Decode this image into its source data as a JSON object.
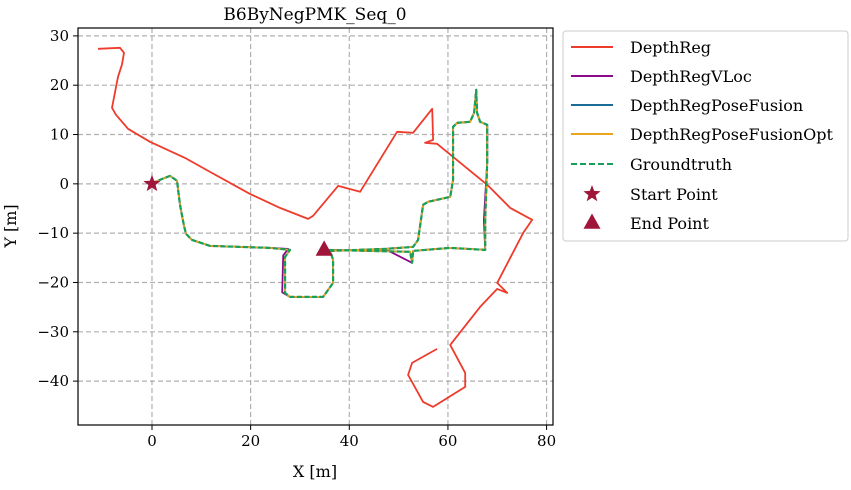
{
  "chart_data": {
    "type": "line",
    "title": "B6ByNegPMK_Seq_0",
    "xlabel": "X [m]",
    "ylabel": "Y [m]",
    "xlim": [
      -15,
      81.3
    ],
    "ylim": [
      -48.9,
      31.6
    ],
    "grid": true,
    "legend_placement": "outside-top-right",
    "xticks": [
      0,
      20,
      40,
      60,
      80
    ],
    "yticks": [
      30,
      20,
      10,
      0,
      -10,
      -20,
      -30,
      -40
    ],
    "xtick_labels": [
      "0",
      "20",
      "40",
      "60",
      "80"
    ],
    "ytick_labels": [
      "30",
      "20",
      "10",
      "0",
      "−10",
      "−20",
      "−30",
      "−40"
    ],
    "series": [
      {
        "name": "DepthReg",
        "color": "#ee3b2c",
        "style": "solid",
        "points": [
          [
            -10.95,
            27.38
          ],
          [
            -6.49,
            27.59
          ],
          [
            -5.68,
            26.57
          ],
          [
            -6.09,
            24.14
          ],
          [
            -6.9,
            21.7
          ],
          [
            -8.11,
            15.42
          ],
          [
            -7.3,
            14.0
          ],
          [
            -4.87,
            11.16
          ],
          [
            -0.41,
            8.52
          ],
          [
            6.69,
            5.27
          ],
          [
            11.76,
            2.43
          ],
          [
            19.88,
            -2.03
          ],
          [
            25.96,
            -4.87
          ],
          [
            31.64,
            -7.1
          ],
          [
            32.66,
            -6.49
          ],
          [
            37.73,
            -0.41
          ],
          [
            42.19,
            -1.62
          ],
          [
            49.7,
            10.55
          ],
          [
            52.94,
            10.34
          ],
          [
            56.8,
            15.21
          ],
          [
            57.0,
            8.92
          ],
          [
            55.38,
            8.32
          ],
          [
            57.81,
            8.11
          ],
          [
            67.95,
            -0.2
          ],
          [
            72.62,
            -4.87
          ],
          [
            77.08,
            -7.3
          ],
          [
            75.25,
            -9.94
          ],
          [
            69.98,
            -20.08
          ],
          [
            72.01,
            -22.11
          ],
          [
            69.98,
            -21.3
          ],
          [
            66.53,
            -24.95
          ],
          [
            60.45,
            -32.66
          ],
          [
            63.49,
            -38.34
          ],
          [
            63.49,
            -41.18
          ],
          [
            57.0,
            -45.23
          ],
          [
            54.97,
            -44.22
          ],
          [
            51.93,
            -38.74
          ],
          [
            52.74,
            -36.31
          ],
          [
            57.81,
            -33.47
          ]
        ]
      },
      {
        "name": "DepthRegVLoc",
        "color": "#8b0a8b",
        "style": "solid",
        "points": [
          [
            0,
            0
          ],
          [
            1.62,
            0.81
          ],
          [
            3.65,
            1.62
          ],
          [
            5.07,
            0.61
          ],
          [
            5.68,
            -4.26
          ],
          [
            6.49,
            -8.52
          ],
          [
            6.9,
            -10.14
          ],
          [
            8.11,
            -11.36
          ],
          [
            11.76,
            -12.58
          ],
          [
            23.94,
            -12.98
          ],
          [
            27.6,
            -13.2
          ],
          [
            26.6,
            -14.5
          ],
          [
            26.4,
            -22.0
          ],
          [
            27.99,
            -22.92
          ],
          [
            34.69,
            -22.92
          ],
          [
            36.71,
            -20.08
          ],
          [
            36.71,
            -15.42
          ],
          [
            36.11,
            -13.59
          ],
          [
            47.67,
            -13.18
          ],
          [
            52.94,
            -12.78
          ],
          [
            53.96,
            -11.36
          ],
          [
            54.97,
            -4.26
          ],
          [
            55.98,
            -3.65
          ],
          [
            60.45,
            -2.64
          ],
          [
            61.05,
            0.81
          ],
          [
            61.05,
            11.56
          ],
          [
            61.87,
            12.37
          ],
          [
            64.5,
            12.58
          ],
          [
            65.31,
            14.4
          ],
          [
            65.72,
            19.07
          ],
          [
            65.92,
            14.4
          ],
          [
            66.53,
            12.58
          ],
          [
            67.95,
            11.97
          ],
          [
            67.95,
            4.26
          ],
          [
            67.3,
            -7.3
          ],
          [
            67.55,
            -13.39
          ],
          [
            60.45,
            -12.98
          ],
          [
            52.94,
            -13.59
          ],
          [
            52.74,
            -16.02
          ],
          [
            48.0,
            -13.6
          ],
          [
            34.89,
            -13.39
          ]
        ]
      },
      {
        "name": "DepthRegPoseFusion",
        "color": "#1a6c96",
        "style": "solid",
        "points": [
          [
            0,
            0
          ],
          [
            1.62,
            0.81
          ],
          [
            3.65,
            1.62
          ],
          [
            5.07,
            0.61
          ],
          [
            5.68,
            -4.26
          ],
          [
            6.49,
            -8.52
          ],
          [
            6.9,
            -10.14
          ],
          [
            8.11,
            -11.36
          ],
          [
            11.76,
            -12.58
          ],
          [
            23.94,
            -12.98
          ],
          [
            27.99,
            -13.39
          ],
          [
            26.98,
            -14.81
          ],
          [
            26.98,
            -22.11
          ],
          [
            27.99,
            -22.92
          ],
          [
            34.69,
            -22.92
          ],
          [
            36.71,
            -20.08
          ],
          [
            36.71,
            -15.42
          ],
          [
            36.11,
            -13.59
          ],
          [
            47.67,
            -13.18
          ],
          [
            52.94,
            -12.78
          ],
          [
            53.96,
            -11.36
          ],
          [
            54.97,
            -4.26
          ],
          [
            55.98,
            -3.65
          ],
          [
            60.45,
            -2.64
          ],
          [
            61.05,
            0.81
          ],
          [
            61.05,
            11.56
          ],
          [
            61.87,
            12.37
          ],
          [
            64.5,
            12.58
          ],
          [
            65.31,
            14.4
          ],
          [
            65.72,
            19.07
          ],
          [
            65.92,
            14.4
          ],
          [
            66.53,
            12.58
          ],
          [
            67.95,
            11.97
          ],
          [
            67.95,
            4.26
          ],
          [
            67.55,
            -7.3
          ],
          [
            67.55,
            -13.39
          ],
          [
            60.45,
            -12.98
          ],
          [
            52.94,
            -13.59
          ],
          [
            52.74,
            -16.02
          ],
          [
            52.33,
            -13.79
          ],
          [
            34.89,
            -13.39
          ]
        ]
      },
      {
        "name": "DepthRegPoseFusionOpt",
        "color": "#eba41c",
        "style": "solid",
        "points": [
          [
            0,
            0
          ],
          [
            1.62,
            0.81
          ],
          [
            3.65,
            1.62
          ],
          [
            5.07,
            0.61
          ],
          [
            5.68,
            -4.26
          ],
          [
            6.49,
            -8.52
          ],
          [
            6.9,
            -10.14
          ],
          [
            8.11,
            -11.36
          ],
          [
            11.76,
            -12.58
          ],
          [
            23.94,
            -12.98
          ],
          [
            27.99,
            -13.39
          ],
          [
            26.98,
            -14.81
          ],
          [
            26.98,
            -22.11
          ],
          [
            27.99,
            -22.92
          ],
          [
            34.69,
            -22.92
          ],
          [
            36.71,
            -20.08
          ],
          [
            36.71,
            -15.42
          ],
          [
            36.11,
            -13.59
          ],
          [
            47.67,
            -13.18
          ],
          [
            52.94,
            -12.78
          ],
          [
            53.96,
            -11.36
          ],
          [
            54.97,
            -4.26
          ],
          [
            55.98,
            -3.65
          ],
          [
            60.45,
            -2.64
          ],
          [
            61.05,
            0.81
          ],
          [
            61.05,
            11.56
          ],
          [
            61.87,
            12.37
          ],
          [
            64.5,
            12.58
          ],
          [
            65.31,
            14.4
          ],
          [
            65.72,
            19.07
          ],
          [
            65.92,
            14.4
          ],
          [
            66.53,
            12.58
          ],
          [
            67.95,
            11.97
          ],
          [
            67.95,
            4.26
          ],
          [
            67.55,
            -7.3
          ],
          [
            67.55,
            -13.39
          ],
          [
            60.45,
            -12.98
          ],
          [
            52.94,
            -13.59
          ],
          [
            52.74,
            -16.02
          ],
          [
            52.33,
            -13.79
          ],
          [
            34.89,
            -13.39
          ]
        ]
      },
      {
        "name": "Groundtruth",
        "color": "#16a05a",
        "style": "dashed",
        "points": [
          [
            0,
            0
          ],
          [
            1.62,
            0.81
          ],
          [
            3.65,
            1.62
          ],
          [
            5.07,
            0.61
          ],
          [
            5.68,
            -4.26
          ],
          [
            6.49,
            -8.52
          ],
          [
            6.9,
            -10.14
          ],
          [
            8.11,
            -11.36
          ],
          [
            11.76,
            -12.58
          ],
          [
            23.94,
            -12.98
          ],
          [
            27.99,
            -13.39
          ],
          [
            26.98,
            -14.81
          ],
          [
            26.98,
            -22.11
          ],
          [
            27.99,
            -22.92
          ],
          [
            34.69,
            -22.92
          ],
          [
            36.71,
            -20.08
          ],
          [
            36.71,
            -15.42
          ],
          [
            36.11,
            -13.59
          ],
          [
            47.67,
            -13.18
          ],
          [
            52.94,
            -12.78
          ],
          [
            53.96,
            -11.36
          ],
          [
            54.97,
            -4.26
          ],
          [
            55.98,
            -3.65
          ],
          [
            60.45,
            -2.64
          ],
          [
            61.05,
            0.81
          ],
          [
            61.05,
            11.56
          ],
          [
            61.87,
            12.37
          ],
          [
            64.5,
            12.58
          ],
          [
            65.31,
            14.4
          ],
          [
            65.72,
            19.07
          ],
          [
            65.92,
            14.4
          ],
          [
            66.53,
            12.58
          ],
          [
            67.95,
            11.97
          ],
          [
            67.95,
            4.26
          ],
          [
            67.55,
            -7.3
          ],
          [
            67.55,
            -13.39
          ],
          [
            60.45,
            -12.98
          ],
          [
            52.94,
            -13.59
          ],
          [
            52.74,
            -16.02
          ],
          [
            52.33,
            -13.79
          ],
          [
            34.89,
            -13.39
          ]
        ]
      }
    ],
    "markers": [
      {
        "name": "Start Point",
        "shape": "star",
        "color": "#a0163a",
        "x": 0,
        "y": 0
      },
      {
        "name": "End Point",
        "shape": "triangle",
        "color": "#a0163a",
        "x": 34.9,
        "y": -13.4
      }
    ],
    "legend": [
      "DepthReg",
      "DepthRegVLoc",
      "DepthRegPoseFusion",
      "DepthRegPoseFusionOpt",
      "Groundtruth",
      "Start Point",
      "End Point"
    ]
  }
}
